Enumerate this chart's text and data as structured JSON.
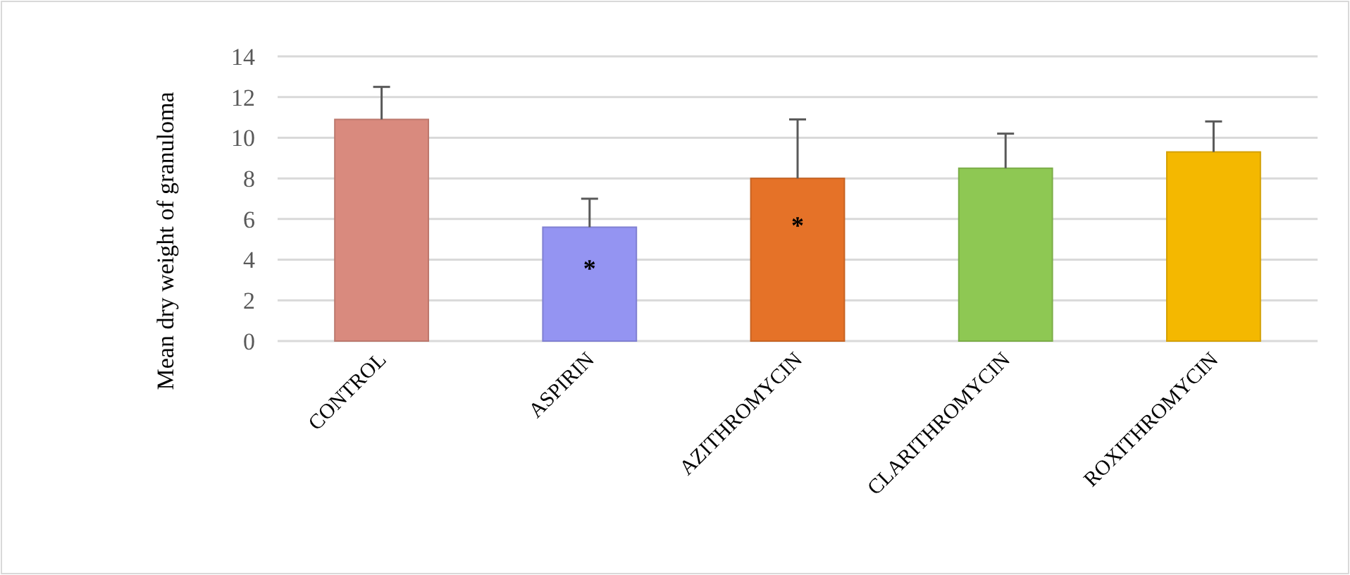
{
  "chart_data": {
    "type": "bar",
    "ylabel": "Mean dry weight of granuloma",
    "categories": [
      "CONTROL",
      "ASPIRIN",
      "AZITHROMYCIN",
      "CLARITHROMYCIN",
      "ROXITHROMYCIN"
    ],
    "values": [
      10.9,
      5.6,
      8.0,
      8.5,
      9.3
    ],
    "colors": [
      "#d98a7e",
      "#9494f2",
      "#e57228",
      "#8ec853",
      "#f4b800"
    ],
    "errors": [
      1.6,
      1.4,
      2.9,
      1.7,
      1.5
    ],
    "ylim": [
      0,
      14
    ],
    "yticks": [
      0,
      2,
      4,
      6,
      8,
      10,
      12,
      14
    ],
    "grid": "y",
    "annotations": [
      {
        "text": "*",
        "x": "ASPIRIN",
        "y": 3.6
      },
      {
        "text": "*",
        "x": "AZITHROMYCIN",
        "y": 5.7
      }
    ]
  }
}
